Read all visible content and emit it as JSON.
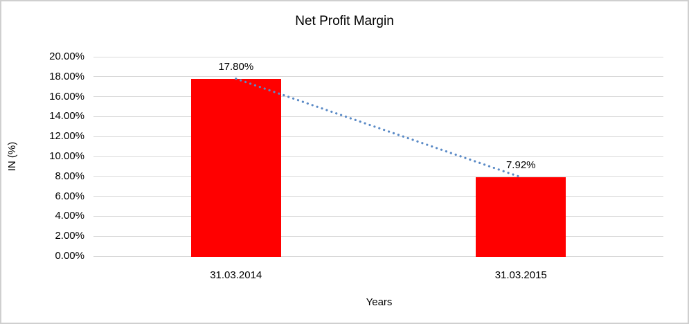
{
  "chart_data": {
    "type": "bar",
    "title": "Net Profit Margin",
    "categories": [
      "31.03.2014",
      "31.03.2015"
    ],
    "values": [
      17.8,
      7.92
    ],
    "data_labels": [
      "17.80%",
      "7.92%"
    ],
    "xlabel": "Years",
    "ylabel": "IN (%)",
    "ylim": [
      0,
      20
    ],
    "y_tick_step": 2,
    "y_ticks": [
      0,
      2,
      4,
      6,
      8,
      10,
      12,
      14,
      16,
      18,
      20
    ],
    "y_tick_labels": [
      "0.00%",
      "2.00%",
      "4.00%",
      "6.00%",
      "8.00%",
      "10.00%",
      "12.00%",
      "14.00%",
      "16.00%",
      "18.00%",
      "20.00%"
    ],
    "grid": true,
    "legend": "none",
    "bar_color": "#ff0000",
    "trendline": {
      "type": "linear",
      "style": "dotted",
      "color": "#5a8ac6",
      "connects": [
        "17.80%",
        "7.92%"
      ]
    }
  },
  "colors": {
    "background": "#ffffff",
    "frame_border": "#cfcfcf",
    "gridline": "#d9d9d9",
    "text": "#000000"
  }
}
